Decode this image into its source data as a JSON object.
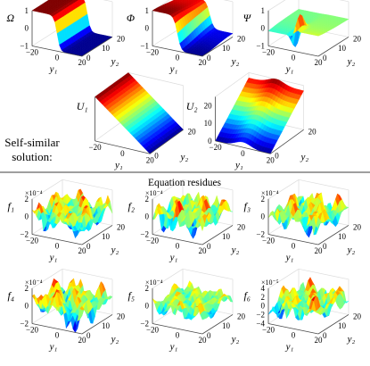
{
  "colors": {
    "colormap": [
      "#00008f",
      "#0000ff",
      "#007fff",
      "#00ffff",
      "#7fff7f",
      "#ffff00",
      "#ff7f00",
      "#ff0000",
      "#7f0000"
    ],
    "axes_line": "#4a4a4a",
    "grid": "#dcdcdc",
    "divider": "#666666"
  },
  "labels": {
    "self_similar_line1": "Self-similar",
    "self_similar_line2": "solution:",
    "equation_residues": "Equation residues"
  },
  "chart_data": [
    {
      "type": "surface",
      "name": "Ω",
      "zlabel": "Ω",
      "xlabel": "y₁",
      "ylabel": "y₂",
      "z_ticks": [
        "1",
        "0",
        "-1"
      ],
      "x_ticks": [
        "-20",
        "0",
        "20"
      ],
      "y_ticks": [
        "0",
        "10",
        "20"
      ],
      "x_range": [
        -20,
        20
      ],
      "y_range": [
        0,
        20
      ],
      "z_range": [
        -1,
        1
      ],
      "shape": "tanh_wall",
      "multiplier": ""
    },
    {
      "type": "surface",
      "name": "Φ",
      "zlabel": "Φ",
      "xlabel": "y₁",
      "ylabel": "y₂",
      "z_ticks": [
        "1",
        "0",
        "-1"
      ],
      "x_ticks": [
        "-20",
        "0",
        "20"
      ],
      "y_ticks": [
        "0",
        "10",
        "20"
      ],
      "x_range": [
        -20,
        20
      ],
      "y_range": [
        0,
        20
      ],
      "z_range": [
        -1,
        1
      ],
      "shape": "tanh_wall_soft",
      "multiplier": ""
    },
    {
      "type": "surface",
      "name": "Ψ",
      "zlabel": "Ψ",
      "xlabel": "y₁",
      "ylabel": "y₂",
      "z_ticks": [
        "1",
        "0",
        "-1"
      ],
      "x_ticks": [
        "-20",
        "0",
        "20"
      ],
      "y_ticks": [
        "0",
        "10",
        "20"
      ],
      "x_range": [
        -20,
        20
      ],
      "y_range": [
        0,
        20
      ],
      "z_range": [
        -1,
        1
      ],
      "shape": "spike_pair",
      "multiplier": ""
    },
    {
      "type": "surface",
      "name": "U₁",
      "zlabel": "U₁",
      "xlabel": "y₁",
      "ylabel": "y₂",
      "z_ticks": [],
      "x_ticks": [
        "-20",
        "0",
        "20"
      ],
      "y_ticks": [
        "0",
        "20"
      ],
      "x_range": [
        -20,
        20
      ],
      "y_range": [
        0,
        20
      ],
      "z_range": [
        -20,
        20
      ],
      "shape": "plane_x",
      "multiplier": ""
    },
    {
      "type": "surface",
      "name": "U₂",
      "zlabel": "U₂",
      "xlabel": "y₁",
      "ylabel": "y₂",
      "z_ticks": [
        "20",
        "10",
        "0"
      ],
      "x_ticks": [
        "-20",
        "0",
        "20"
      ],
      "y_ticks": [
        "0",
        "20"
      ],
      "x_range": [
        -20,
        20
      ],
      "y_range": [
        0,
        20
      ],
      "z_range": [
        0,
        25
      ],
      "shape": "plane_y_ridge",
      "multiplier": ""
    },
    {
      "type": "surface",
      "name": "f₁",
      "zlabel": "f₁",
      "xlabel": "y₁",
      "ylabel": "y₂",
      "z_ticks": [
        "2",
        "0",
        "-2"
      ],
      "x_ticks": [
        "-20",
        "0",
        "20"
      ],
      "y_ticks": [
        "0",
        "10",
        "20"
      ],
      "x_range": [
        -20,
        20
      ],
      "y_range": [
        0,
        20
      ],
      "z_range": [
        -2,
        2
      ],
      "shape": "residue_a",
      "multiplier": "×10⁻⁴"
    },
    {
      "type": "surface",
      "name": "f₂",
      "zlabel": "f₂",
      "xlabel": "y₁",
      "ylabel": "y₂",
      "z_ticks": [
        "2",
        "0",
        "-2"
      ],
      "x_ticks": [
        "-20",
        "0",
        "20"
      ],
      "y_ticks": [
        "0",
        "10",
        "20"
      ],
      "x_range": [
        -20,
        20
      ],
      "y_range": [
        0,
        20
      ],
      "z_range": [
        -2,
        2
      ],
      "shape": "residue_b",
      "multiplier": "×10⁻⁴"
    },
    {
      "type": "surface",
      "name": "f₃",
      "zlabel": "f₃",
      "xlabel": "y₁",
      "ylabel": "y₂",
      "z_ticks": [
        "2",
        "0",
        "-2"
      ],
      "x_ticks": [
        "-20",
        "0",
        "20"
      ],
      "y_ticks": [
        "0",
        "10",
        "20"
      ],
      "x_range": [
        -20,
        20
      ],
      "y_range": [
        0,
        20
      ],
      "z_range": [
        -2,
        2
      ],
      "shape": "residue_c",
      "multiplier": "×10⁻⁴"
    },
    {
      "type": "surface",
      "name": "f₄",
      "zlabel": "f₄",
      "xlabel": "y₁",
      "ylabel": "y₂",
      "z_ticks": [
        "2",
        "0",
        "-2"
      ],
      "x_ticks": [
        "-20",
        "0",
        "20"
      ],
      "y_ticks": [
        "0",
        "10",
        "20"
      ],
      "x_range": [
        -20,
        20
      ],
      "y_range": [
        0,
        20
      ],
      "z_range": [
        -2,
        2
      ],
      "shape": "residue_d",
      "multiplier": "×10⁻⁴"
    },
    {
      "type": "surface",
      "name": "f₅",
      "zlabel": "f₅",
      "xlabel": "y₁",
      "ylabel": "y₂",
      "z_ticks": [
        "2",
        "0",
        "-2"
      ],
      "x_ticks": [
        "-20",
        "0",
        "20"
      ],
      "y_ticks": [
        "0",
        "10",
        "20"
      ],
      "x_range": [
        -20,
        20
      ],
      "y_range": [
        0,
        20
      ],
      "z_range": [
        -2,
        2
      ],
      "shape": "residue_e",
      "multiplier": "×10⁻⁴"
    },
    {
      "type": "surface",
      "name": "f₆",
      "zlabel": "f₆",
      "xlabel": "y₁",
      "ylabel": "y₂",
      "z_ticks": [
        "4",
        "2",
        "0",
        "-2",
        "-4"
      ],
      "x_ticks": [
        "-20",
        "0",
        "20"
      ],
      "y_ticks": [
        "0",
        "10",
        "20"
      ],
      "x_range": [
        -20,
        20
      ],
      "y_range": [
        0,
        20
      ],
      "z_range": [
        -4,
        4
      ],
      "shape": "residue_f",
      "multiplier": "×10⁻⁵"
    }
  ]
}
